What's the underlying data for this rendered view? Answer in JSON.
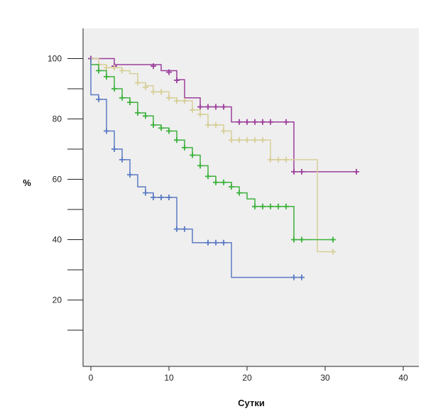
{
  "chart_data": {
    "type": "line",
    "title": "",
    "xlabel": "Сутки",
    "ylabel": "%",
    "xlim": [
      -1,
      42
    ],
    "ylim": [
      -2,
      110
    ],
    "grid": false,
    "legend": "none",
    "plot_background": "#efefef",
    "x_ticks": [
      0,
      10,
      20,
      30,
      40
    ],
    "x_tick_labels": [
      "0",
      "10",
      "20",
      "30",
      "40"
    ],
    "y_ticks": [
      10,
      20,
      30,
      40,
      50,
      60,
      70,
      80,
      90,
      100
    ],
    "y_tick_labels": [
      "",
      "20",
      "",
      "40",
      "",
      "60",
      "",
      "80",
      "",
      "100"
    ],
    "series": [
      {
        "color": "#9b3f9b",
        "steps": [
          [
            0,
            100
          ],
          [
            3,
            100
          ],
          [
            3,
            98
          ],
          [
            9,
            98
          ],
          [
            9,
            96
          ],
          [
            11,
            96
          ],
          [
            11,
            93
          ],
          [
            12,
            93
          ],
          [
            12,
            87
          ],
          [
            14,
            87
          ],
          [
            14,
            84
          ],
          [
            18,
            84
          ],
          [
            18,
            79
          ],
          [
            26,
            79
          ],
          [
            26,
            62.5
          ],
          [
            34,
            62.5
          ]
        ],
        "censored": [
          [
            0,
            100
          ],
          [
            3,
            97.5
          ],
          [
            8,
            97.5
          ],
          [
            10,
            95.5
          ],
          [
            11,
            92.8
          ],
          [
            14,
            84
          ],
          [
            15,
            84
          ],
          [
            16,
            84
          ],
          [
            17,
            84
          ],
          [
            19,
            79
          ],
          [
            20,
            79
          ],
          [
            21,
            79
          ],
          [
            22,
            79
          ],
          [
            23,
            79
          ],
          [
            25,
            79
          ],
          [
            26,
            62.5
          ],
          [
            27,
            62.5
          ],
          [
            34,
            62.5
          ]
        ]
      },
      {
        "color": "#d7cf98",
        "steps": [
          [
            0,
            100
          ],
          [
            1,
            100
          ],
          [
            1,
            98
          ],
          [
            2,
            98
          ],
          [
            2,
            97
          ],
          [
            4,
            97
          ],
          [
            4,
            96
          ],
          [
            5,
            96
          ],
          [
            5,
            95
          ],
          [
            6,
            95
          ],
          [
            6,
            92
          ],
          [
            7,
            92
          ],
          [
            7,
            91
          ],
          [
            8,
            91
          ],
          [
            8,
            89
          ],
          [
            10,
            89
          ],
          [
            10,
            87
          ],
          [
            11,
            87
          ],
          [
            11,
            86
          ],
          [
            13,
            86
          ],
          [
            13,
            83
          ],
          [
            14,
            83
          ],
          [
            14,
            81.5
          ],
          [
            15,
            81.5
          ],
          [
            15,
            78
          ],
          [
            17,
            78
          ],
          [
            17,
            76
          ],
          [
            18,
            76
          ],
          [
            18,
            73
          ],
          [
            23,
            73
          ],
          [
            23,
            66.5
          ],
          [
            29,
            66.5
          ],
          [
            29,
            36
          ],
          [
            31,
            36
          ]
        ],
        "censored": [
          [
            1,
            98
          ],
          [
            2,
            97
          ],
          [
            3,
            97
          ],
          [
            4,
            96
          ],
          [
            6,
            92
          ],
          [
            7,
            90.5
          ],
          [
            8,
            89
          ],
          [
            9,
            89
          ],
          [
            10,
            87
          ],
          [
            11,
            86
          ],
          [
            12,
            86
          ],
          [
            13,
            83
          ],
          [
            14,
            81.5
          ],
          [
            15,
            78
          ],
          [
            16,
            78
          ],
          [
            17,
            76
          ],
          [
            18,
            73
          ],
          [
            19,
            73
          ],
          [
            20,
            73
          ],
          [
            21,
            73
          ],
          [
            22,
            73
          ],
          [
            23,
            66.5
          ],
          [
            24,
            66.5
          ],
          [
            25,
            66.5
          ],
          [
            31,
            36
          ]
        ]
      },
      {
        "color": "#3db13d",
        "steps": [
          [
            0,
            100
          ],
          [
            0,
            98
          ],
          [
            1,
            98
          ],
          [
            1,
            96
          ],
          [
            2,
            96
          ],
          [
            2,
            94
          ],
          [
            3,
            94
          ],
          [
            3,
            90
          ],
          [
            4,
            90
          ],
          [
            4,
            87
          ],
          [
            5,
            87
          ],
          [
            5,
            85.5
          ],
          [
            6,
            85.5
          ],
          [
            6,
            82
          ],
          [
            7,
            82
          ],
          [
            7,
            81
          ],
          [
            8,
            81
          ],
          [
            8,
            78
          ],
          [
            9,
            78
          ],
          [
            9,
            77
          ],
          [
            10,
            77
          ],
          [
            10,
            76
          ],
          [
            11,
            76
          ],
          [
            11,
            73
          ],
          [
            12,
            73
          ],
          [
            12,
            70.5
          ],
          [
            13,
            70.5
          ],
          [
            13,
            68
          ],
          [
            14,
            68
          ],
          [
            14,
            64.5
          ],
          [
            15,
            64.5
          ],
          [
            15,
            61
          ],
          [
            16,
            61
          ],
          [
            16,
            59
          ],
          [
            18,
            59
          ],
          [
            18,
            57.5
          ],
          [
            19,
            57.5
          ],
          [
            19,
            55.5
          ],
          [
            20,
            55.5
          ],
          [
            20,
            53.5
          ],
          [
            21,
            53.5
          ],
          [
            21,
            51
          ],
          [
            26,
            51
          ],
          [
            26,
            40
          ],
          [
            31,
            40
          ]
        ],
        "censored": [
          [
            1,
            96
          ],
          [
            2,
            94
          ],
          [
            3,
            90
          ],
          [
            4,
            87
          ],
          [
            5,
            85.5
          ],
          [
            6,
            82
          ],
          [
            7,
            81
          ],
          [
            8,
            78
          ],
          [
            9,
            77
          ],
          [
            10,
            76
          ],
          [
            11,
            73
          ],
          [
            12,
            70.5
          ],
          [
            13,
            68
          ],
          [
            14,
            64.5
          ],
          [
            15,
            61
          ],
          [
            16,
            59
          ],
          [
            17,
            59
          ],
          [
            18,
            57.5
          ],
          [
            19,
            55.5
          ],
          [
            21,
            51
          ],
          [
            22,
            51
          ],
          [
            23,
            51
          ],
          [
            24,
            51
          ],
          [
            25,
            51
          ],
          [
            26,
            40
          ],
          [
            27,
            40
          ],
          [
            31,
            40
          ]
        ]
      },
      {
        "color": "#5b7bc4",
        "steps": [
          [
            0,
            100
          ],
          [
            0,
            88
          ],
          [
            1,
            88
          ],
          [
            1,
            86.5
          ],
          [
            2,
            86.5
          ],
          [
            2,
            76
          ],
          [
            3,
            76
          ],
          [
            3,
            70
          ],
          [
            4,
            70
          ],
          [
            4,
            66.5
          ],
          [
            5,
            66.5
          ],
          [
            5,
            61.5
          ],
          [
            6,
            61.5
          ],
          [
            6,
            57.5
          ],
          [
            7,
            57.5
          ],
          [
            7,
            55.5
          ],
          [
            8,
            55.5
          ],
          [
            8,
            54
          ],
          [
            11,
            54
          ],
          [
            11,
            43.5
          ],
          [
            13,
            43.5
          ],
          [
            13,
            39
          ],
          [
            18,
            39
          ],
          [
            18,
            27.5
          ],
          [
            27,
            27.5
          ]
        ],
        "censored": [
          [
            1,
            86.5
          ],
          [
            2,
            76
          ],
          [
            3,
            70
          ],
          [
            4,
            66.5
          ],
          [
            5,
            61.5
          ],
          [
            7,
            55.5
          ],
          [
            8,
            54
          ],
          [
            9,
            54
          ],
          [
            10,
            54
          ],
          [
            11,
            43.5
          ],
          [
            12,
            43.5
          ],
          [
            15,
            39
          ],
          [
            16,
            39
          ],
          [
            17,
            39
          ],
          [
            26,
            27.5
          ],
          [
            27,
            27.5
          ]
        ]
      }
    ]
  }
}
